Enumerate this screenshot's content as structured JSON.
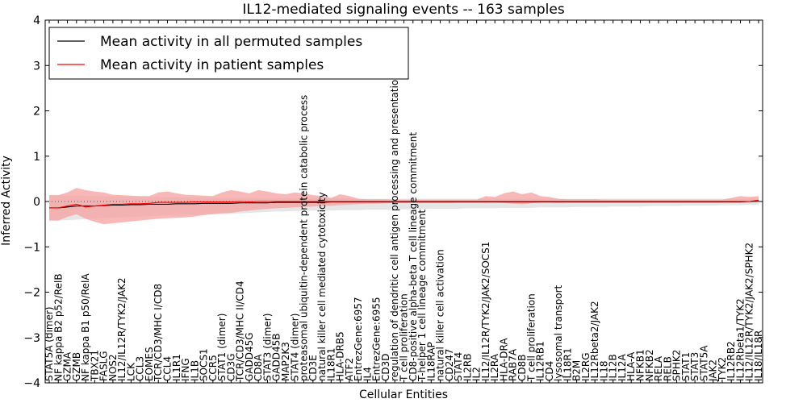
{
  "chart_data": {
    "type": "line",
    "title": "IL12-mediated signaling events -- 163 samples",
    "xlabel": "Cellular Entities",
    "ylabel": "Inferred Activity",
    "ylim": [
      -4,
      4
    ],
    "yticks": [
      -4,
      -3,
      -2,
      -1,
      0,
      1,
      2,
      3,
      4
    ],
    "ytick_labels": [
      "−4",
      "−3",
      "−2",
      "−1",
      "0",
      "1",
      "2",
      "3",
      "4"
    ],
    "zero_line": true,
    "legend_position": "top-left",
    "categories": [
      "STAT5A (dimer)",
      "NF kappa B2 p52/RelB",
      "GZMA",
      "GZMB",
      "NF kappa B1 p50/RelA",
      "TBX21",
      "FASLG",
      "NOS2",
      "IL12/IL12R/TYK2/JAK2",
      "LCK",
      "CCL3",
      "EOMES",
      "TCR/CD3/MHC I/CD8",
      "CCL4",
      "IL1R1",
      "IFNG",
      "IL1B",
      "SOCS1",
      "CCR5",
      "STAT1 (dimer)",
      "CD3G",
      "TCR/CD3/MHC II/CD4",
      "GADD45G",
      "CD8A",
      "STAT3 (dimer)",
      "GADD45B",
      "MAP2K3",
      "STAT4 (dimer)",
      "proteasomal ubiquitin-dependent protein catabolic process",
      "CD3E",
      "natural killer cell mediated cytotoxicity",
      "IL18R1",
      "HLA-DRB5",
      "ATF2",
      "EntrezGene:6957",
      "IL4",
      "EntrezGene:6955",
      "CD3D",
      "regulation of dendritic cell antigen processing and presentation",
      "T cell proliferation",
      "CD8-positive alpha-beta T cell lineage commitment",
      "T-helper 1 cell lineage commitment",
      "IL18RAP",
      "natural killer cell activation",
      "CD247",
      "STAT4",
      "IL2RB",
      "IL2",
      "IL12/IL12R/TYK2/JAK2/SOCS1",
      "IL2RA",
      "HLA-DRA",
      "RAB7A",
      "CD8B",
      "T cell proliferation",
      "IL12RB1",
      "CD4",
      "lysosomal transport",
      "IL18R1",
      "B2M",
      "IL2RG",
      "IL12Rbeta2/JAK2",
      "IL18",
      "IL12B",
      "IL12A",
      "HLA-A",
      "NFKB1",
      "NFKB2",
      "RELA",
      "RELB",
      "SPHK2",
      "STAT1",
      "STAT3",
      "STAT5A",
      "JAK2",
      "TYK2",
      "IL12RB2",
      "IL12Rbeta1/TYK2",
      "IL12/IL12R/TYK2/JAK2/SPHK2",
      "IL18/IL18R"
    ],
    "series": [
      {
        "name": "Mean activity in all permuted samples",
        "color": "#000000",
        "band_color": "#e2e2e2",
        "values": [
          -0.14,
          -0.14,
          -0.12,
          -0.1,
          -0.1,
          -0.1,
          -0.09,
          -0.08,
          -0.08,
          -0.07,
          -0.07,
          -0.06,
          -0.06,
          -0.06,
          -0.05,
          -0.05,
          -0.05,
          -0.04,
          -0.04,
          -0.04,
          -0.04,
          -0.03,
          -0.03,
          -0.03,
          -0.03,
          -0.02,
          -0.02,
          -0.02,
          -0.02,
          -0.02,
          -0.02,
          -0.01,
          -0.01,
          -0.01,
          -0.01,
          -0.01,
          -0.01,
          -0.01,
          -0.01,
          -0.01,
          -0.01,
          -0.01,
          -0.01,
          -0.01,
          -0.01,
          -0.01,
          -0.01,
          -0.01,
          -0.01,
          -0.01,
          -0.01,
          -0.01,
          -0.01,
          -0.01,
          -0.01,
          -0.01,
          -0.01,
          -0.01,
          -0.01,
          -0.01,
          -0.01,
          -0.01,
          -0.01,
          -0.01,
          -0.01,
          -0.01,
          -0.01,
          -0.01,
          -0.01,
          -0.01,
          -0.01,
          -0.01,
          -0.01,
          -0.01,
          -0.01,
          -0.01,
          -0.01,
          0.0,
          0.01
        ],
        "band_lower": [
          -0.42,
          -0.42,
          -0.41,
          -0.4,
          -0.39,
          -0.38,
          -0.37,
          -0.36,
          -0.35,
          -0.34,
          -0.33,
          -0.32,
          -0.31,
          -0.3,
          -0.3,
          -0.29,
          -0.29,
          -0.28,
          -0.28,
          -0.28,
          -0.27,
          -0.26,
          -0.25,
          -0.24,
          -0.23,
          -0.22,
          -0.22,
          -0.21,
          -0.21,
          -0.2,
          -0.2,
          -0.2,
          -0.19,
          -0.19,
          -0.19,
          -0.18,
          -0.18,
          -0.18,
          -0.17,
          -0.17,
          -0.17,
          -0.17,
          -0.16,
          -0.16,
          -0.16,
          -0.16,
          -0.15,
          -0.15,
          -0.15,
          -0.15,
          -0.14,
          -0.14,
          -0.14,
          -0.14,
          -0.13,
          -0.13,
          -0.13,
          -0.13,
          -0.12,
          -0.12,
          -0.12,
          -0.12,
          -0.11,
          -0.11,
          -0.11,
          -0.11,
          -0.1,
          -0.1,
          -0.1,
          -0.1,
          -0.09,
          -0.09,
          -0.09,
          -0.09,
          -0.08,
          -0.08,
          -0.08,
          -0.07,
          -0.07
        ],
        "band_upper": [
          0.14,
          0.14,
          0.13,
          0.13,
          0.12,
          0.12,
          0.11,
          0.11,
          0.11,
          0.1,
          0.1,
          0.1,
          0.1,
          0.09,
          0.09,
          0.09,
          0.09,
          0.09,
          0.08,
          0.08,
          0.08,
          0.08,
          0.08,
          0.08,
          0.07,
          0.07,
          0.07,
          0.07,
          0.07,
          0.07,
          0.07,
          0.07,
          0.07,
          0.07,
          0.06,
          0.06,
          0.06,
          0.06,
          0.06,
          0.06,
          0.06,
          0.06,
          0.06,
          0.06,
          0.06,
          0.06,
          0.06,
          0.06,
          0.06,
          0.06,
          0.06,
          0.06,
          0.06,
          0.06,
          0.06,
          0.06,
          0.06,
          0.06,
          0.06,
          0.06,
          0.06,
          0.06,
          0.06,
          0.06,
          0.06,
          0.06,
          0.06,
          0.06,
          0.06,
          0.06,
          0.06,
          0.06,
          0.06,
          0.06,
          0.06,
          0.06,
          0.06,
          0.06,
          0.07
        ]
      },
      {
        "name": "Mean activity in patient samples",
        "color": "#ff0000",
        "band_color": "#f5a0a0",
        "values": [
          -0.14,
          -0.14,
          -0.1,
          -0.06,
          -0.12,
          -0.1,
          -0.08,
          -0.06,
          -0.06,
          -0.05,
          -0.05,
          -0.04,
          -0.02,
          -0.02,
          -0.02,
          -0.02,
          -0.01,
          -0.01,
          -0.01,
          -0.01,
          -0.01,
          0.0,
          -0.01,
          0.0,
          0.0,
          0.0,
          0.0,
          0.0,
          0.0,
          0.0,
          0.0,
          0.0,
          0.0,
          0.0,
          0.0,
          0.0,
          0.0,
          0.0,
          0.0,
          0.0,
          0.0,
          0.0,
          0.0,
          0.0,
          0.0,
          0.0,
          0.0,
          0.0,
          0.0,
          0.0,
          0.0,
          0.0,
          0.0,
          0.0,
          0.0,
          0.0,
          0.0,
          0.0,
          0.0,
          0.0,
          0.0,
          0.0,
          0.0,
          0.0,
          0.0,
          0.0,
          0.0,
          0.0,
          0.0,
          0.0,
          0.0,
          0.0,
          0.0,
          0.0,
          0.0,
          0.0,
          0.0,
          0.0,
          0.03
        ],
        "band_lower": [
          -0.42,
          -0.42,
          -0.34,
          -0.28,
          -0.38,
          -0.45,
          -0.5,
          -0.48,
          -0.46,
          -0.44,
          -0.42,
          -0.4,
          -0.38,
          -0.37,
          -0.36,
          -0.35,
          -0.33,
          -0.3,
          -0.28,
          -0.26,
          -0.25,
          -0.22,
          -0.2,
          -0.18,
          -0.16,
          -0.15,
          -0.14,
          -0.13,
          -0.12,
          -0.11,
          -0.1,
          -0.09,
          -0.08,
          -0.07,
          -0.06,
          -0.05,
          -0.05,
          -0.04,
          -0.03,
          -0.03,
          -0.03,
          -0.03,
          -0.03,
          -0.03,
          -0.03,
          -0.02,
          -0.02,
          -0.02,
          -0.02,
          -0.02,
          -0.03,
          -0.05,
          -0.06,
          -0.04,
          -0.02,
          -0.02,
          -0.03,
          -0.02,
          -0.02,
          -0.02,
          -0.02,
          -0.02,
          -0.02,
          -0.02,
          -0.02,
          -0.02,
          -0.02,
          -0.02,
          -0.02,
          -0.02,
          -0.02,
          -0.02,
          -0.02,
          -0.02,
          -0.02,
          -0.02,
          -0.02,
          -0.02,
          -0.02
        ],
        "band_upper": [
          0.14,
          0.14,
          0.2,
          0.3,
          0.25,
          0.22,
          0.2,
          0.15,
          0.14,
          0.13,
          0.12,
          0.12,
          0.2,
          0.22,
          0.18,
          0.15,
          0.14,
          0.13,
          0.12,
          0.2,
          0.25,
          0.22,
          0.18,
          0.25,
          0.22,
          0.18,
          0.16,
          0.2,
          0.18,
          0.14,
          0.12,
          0.08,
          0.16,
          0.12,
          0.06,
          0.05,
          0.05,
          0.05,
          0.04,
          0.04,
          0.04,
          0.04,
          0.04,
          0.04,
          0.04,
          0.04,
          0.04,
          0.04,
          0.12,
          0.1,
          0.18,
          0.22,
          0.16,
          0.2,
          0.12,
          0.1,
          0.06,
          0.05,
          0.05,
          0.05,
          0.05,
          0.04,
          0.04,
          0.04,
          0.04,
          0.04,
          0.04,
          0.04,
          0.04,
          0.04,
          0.04,
          0.04,
          0.04,
          0.04,
          0.04,
          0.08,
          0.12,
          0.1,
          0.12
        ]
      }
    ]
  }
}
